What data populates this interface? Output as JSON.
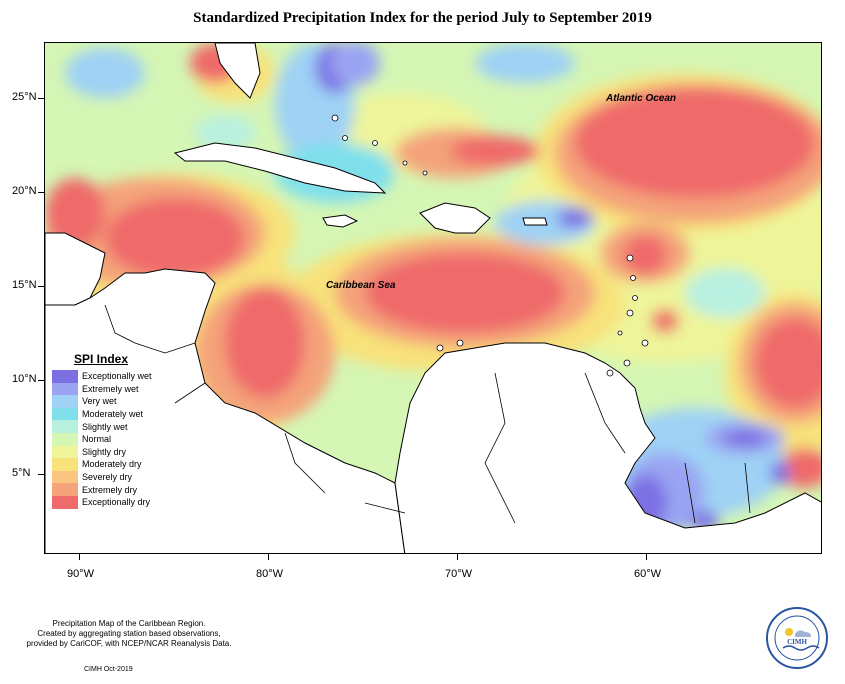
{
  "title": "Standardized Precipitation Index for the period July to September 2019",
  "labels": {
    "atlantic": "Atlantic Ocean",
    "caribbean": "Caribbean Sea"
  },
  "axes": {
    "y_ticks": [
      "25°N",
      "20°N",
      "15°N",
      "10°N",
      "5°N"
    ],
    "x_ticks": [
      "90°W",
      "80°W",
      "70°W",
      "60°W"
    ]
  },
  "legend": {
    "title": "SPI Index",
    "items": [
      {
        "label": "Exceptionally wet",
        "color": "#7b6fe3"
      },
      {
        "label": "Extremely wet",
        "color": "#9aa4f2"
      },
      {
        "label": "Very wet",
        "color": "#9fd2f5"
      },
      {
        "label": "Moderately wet",
        "color": "#7fe0ec"
      },
      {
        "label": "Slightly wet",
        "color": "#b8f0e0"
      },
      {
        "label": "Normal",
        "color": "#d5f6b4"
      },
      {
        "label": "Slightly dry",
        "color": "#eef59a"
      },
      {
        "label": "Moderately dry",
        "color": "#f8e27a"
      },
      {
        "label": "Severely dry",
        "color": "#f8c680"
      },
      {
        "label": "Extremely dry",
        "color": "#f4a37a"
      },
      {
        "label": "Exceptionally dry",
        "color": "#ef6b6b"
      }
    ]
  },
  "credits": {
    "line1": "Precipitation Map of the Caribbean Region.",
    "line2": "Created by aggregating station based observations,",
    "line3": "provided by CariCOF, with NCEP/NCAR Reanalysis Data.",
    "date": "CIMH Oct-2019"
  },
  "logo_text": "CIMH"
}
